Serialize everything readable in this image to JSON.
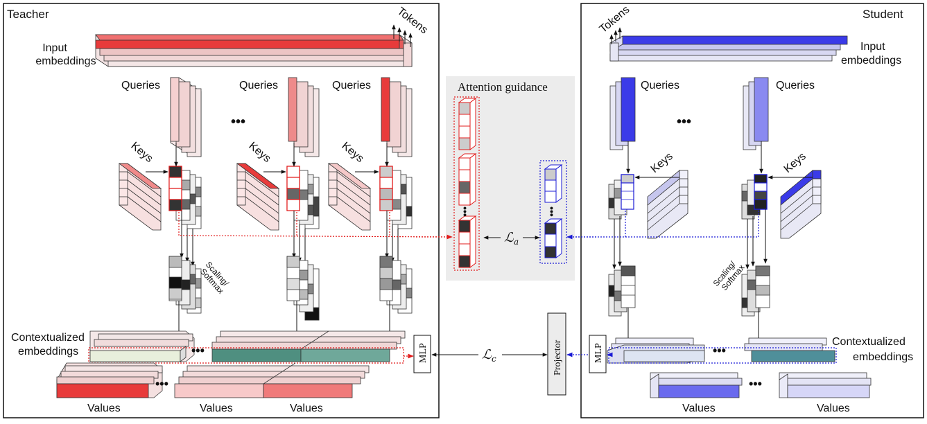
{
  "teacher": {
    "title": "Teacher",
    "title_color": "#e21b1b",
    "input_label_line1": "Input",
    "input_label_line2": "embeddings",
    "tokens_label": "Tokens",
    "queries_label": "Queries",
    "keys_label": "Keys",
    "scaling_line1": "Scaling/",
    "scaling_line2": "Softmax",
    "ctx_line1": "Contextualized",
    "ctx_line2": "embeddings",
    "values_label": "Values",
    "mlp_label": "MLP",
    "colors": {
      "light": "#f7d4d4",
      "mid": "#f08a8a",
      "strong": "#e83b3b"
    }
  },
  "student": {
    "title": "Student",
    "title_color": "#1b1bd6",
    "input_label_line1": "Input",
    "input_label_line2": "embeddings",
    "tokens_label": "Tokens",
    "queries_label": "Queries",
    "keys_label": "Keys",
    "scaling_line1": "Scaling/",
    "scaling_line2": "Softmax",
    "ctx_line1": "Contextualized",
    "ctx_line2": "embeddings",
    "values_label": "Values",
    "mlp_label": "MLP",
    "colors": {
      "light": "#d8d8f7",
      "mid": "#8a8af0",
      "strong": "#3b3be8"
    }
  },
  "middle": {
    "attention_guidance": "Attention guidance",
    "loss_a": "ℒ",
    "loss_a_sub": "a",
    "loss_c": "ℒ",
    "loss_c_sub": "c",
    "projector_label": "Projector"
  },
  "ellipsis": "•••"
}
